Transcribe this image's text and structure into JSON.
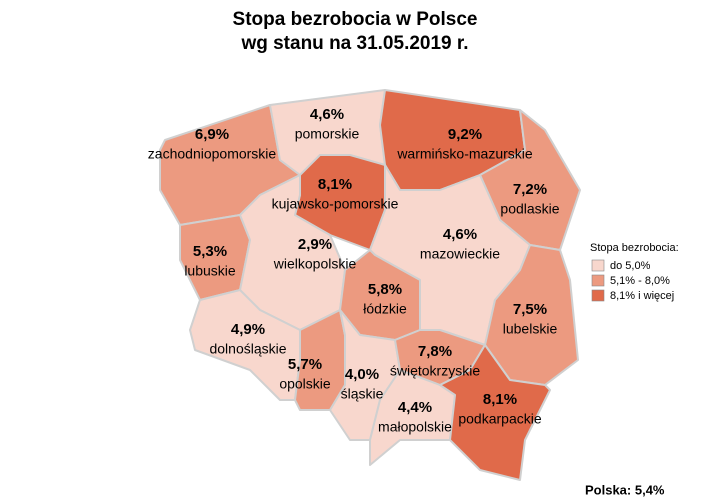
{
  "title": [
    "Stopa bezrobocia w Polsce",
    "wg stanu na 31.05.2019 r."
  ],
  "regions": [
    {
      "name": "zachodniopomorskie",
      "value": 6.9,
      "value_label": "6,9%",
      "color": "#ec9a80"
    },
    {
      "name": "pomorskie",
      "value": 4.6,
      "value_label": "4,6%",
      "color": "#f8d7cd"
    },
    {
      "name": "warmińsko-mazurskie",
      "value": 9.2,
      "value_label": "9,2%",
      "color": "#e06a4a"
    },
    {
      "name": "podlaskie",
      "value": 7.2,
      "value_label": "7,2%",
      "color": "#ec9a80"
    },
    {
      "name": "kujawsko-pomorskie",
      "value": 8.1,
      "value_label": "8,1%",
      "color": "#e06a4a"
    },
    {
      "name": "lubuskie",
      "value": 5.3,
      "value_label": "5,3%",
      "color": "#ec9a80"
    },
    {
      "name": "wielkopolskie",
      "value": 2.9,
      "value_label": "2,9%",
      "color": "#f8d7cd"
    },
    {
      "name": "mazowieckie",
      "value": 4.6,
      "value_label": "4,6%",
      "color": "#f8d7cd"
    },
    {
      "name": "lubelskie",
      "value": 7.5,
      "value_label": "7,5%",
      "color": "#ec9a80"
    },
    {
      "name": "łódzkie",
      "value": 5.8,
      "value_label": "5,8%",
      "color": "#ec9a80"
    },
    {
      "name": "dolnośląskie",
      "value": 4.9,
      "value_label": "4,9%",
      "color": "#f8d7cd"
    },
    {
      "name": "opolskie",
      "value": 5.7,
      "value_label": "5,7%",
      "color": "#ec9a80"
    },
    {
      "name": "śląskie",
      "value": 4.0,
      "value_label": "4,0%",
      "color": "#f8d7cd"
    },
    {
      "name": "świętokrzyskie",
      "value": 7.8,
      "value_label": "7,8%",
      "color": "#ec9a80"
    },
    {
      "name": "małopolskie",
      "value": 4.4,
      "value_label": "4,4%",
      "color": "#f8d7cd"
    },
    {
      "name": "podkarpackie",
      "value": 8.1,
      "value_label": "8,1%",
      "color": "#e06a4a"
    }
  ],
  "legend": {
    "title": "Stopa bezrobocia:",
    "items": [
      {
        "label": "do 5,0%",
        "color": "#f8d7cd"
      },
      {
        "label": "5,1% - 8,0%",
        "color": "#ec9a80"
      },
      {
        "label": "8,1% i więcej",
        "color": "#e06a4a"
      }
    ]
  },
  "footer": "Polska: 5,4%"
}
